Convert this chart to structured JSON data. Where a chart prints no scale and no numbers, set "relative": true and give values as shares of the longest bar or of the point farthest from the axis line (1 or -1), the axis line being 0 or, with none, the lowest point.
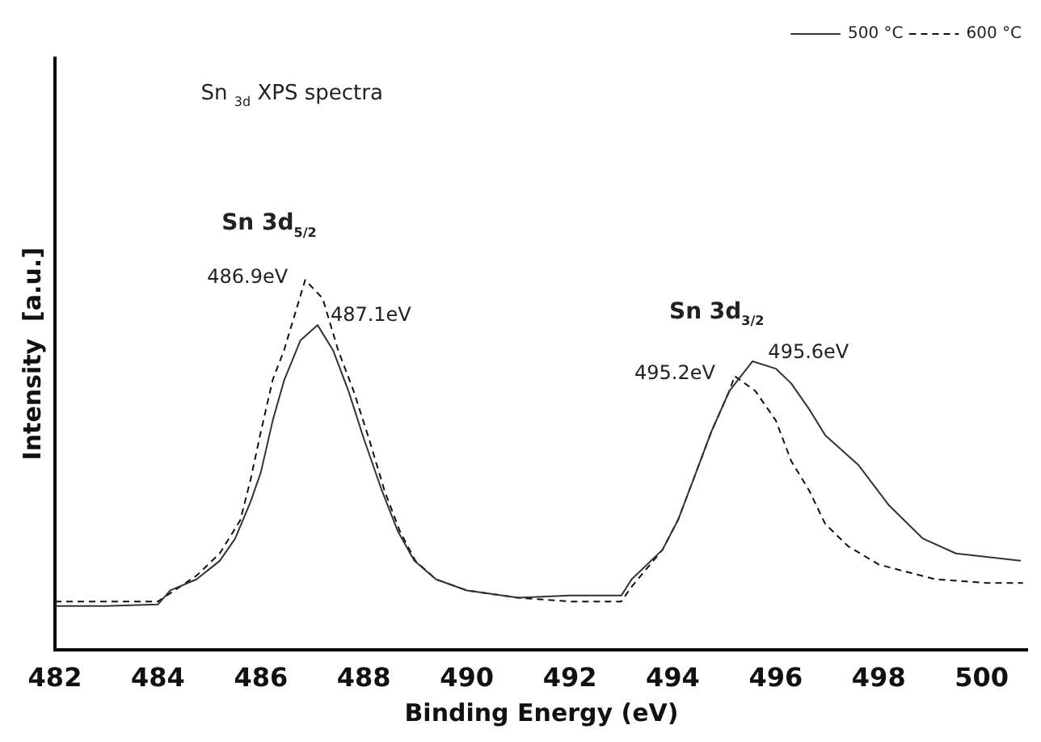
{
  "chart_data": {
    "type": "line",
    "relative": true,
    "xlabel": "Binding Energy (eV)",
    "ylabel": "Intensity  [a.u.]",
    "xlim": [
      482,
      500.9
    ],
    "xticks": [
      482,
      484,
      486,
      488,
      490,
      492,
      494,
      496,
      498,
      500
    ],
    "grid": false,
    "legend": "top right",
    "marker": "none",
    "annotations": [
      "Sn $_{3d}$ XPS spectra",
      "Sn 3d$_{5/2}$",
      {
        "text": "486.9eV",
        "x": 486.9,
        "y": 1.0
      },
      {
        "text": "487.1eV",
        "x": 487.1,
        "y": 0.88
      },
      "Sn 3d$_{3/2}$",
      {
        "text": "495.2eV",
        "x": 495.2,
        "y": 0.74
      },
      {
        "text": "495.6eV",
        "x": 495.6,
        "y": 0.78
      }
    ],
    "series": [
      {
        "name": "500 °C",
        "color": "#333333",
        "line_style": "solid",
        "x": [
          482,
          483,
          484,
          484.24,
          484.75,
          485.2,
          485.5,
          485.8,
          486,
          486.23,
          486.45,
          486.77,
          487.1,
          487.4,
          487.7,
          488,
          488.35,
          488.66,
          488.98,
          489.4,
          490,
          491,
          492,
          493,
          493.2,
          493.8,
          494.1,
          494.4,
          494.75,
          495.1,
          495.55,
          496,
          496.3,
          496.65,
          496.96,
          497.6,
          498.2,
          498.86,
          499.5,
          500.76
        ],
        "values": [
          0.118,
          0.118,
          0.122,
          0.16,
          0.19,
          0.24,
          0.3,
          0.4,
          0.48,
          0.62,
          0.728,
          0.837,
          0.878,
          0.81,
          0.7,
          0.57,
          0.43,
          0.32,
          0.24,
          0.19,
          0.16,
          0.14,
          0.146,
          0.146,
          0.19,
          0.27,
          0.35,
          0.46,
          0.59,
          0.7,
          0.78,
          0.76,
          0.72,
          0.65,
          0.58,
          0.5,
          0.39,
          0.3,
          0.26,
          0.24
        ]
      },
      {
        "name": "600 °C",
        "color": "#111111",
        "line_style": "dashed",
        "x": [
          482,
          483,
          484,
          484.75,
          485.2,
          485.6,
          485.8,
          486,
          486.23,
          486.45,
          486.86,
          487.2,
          487.5,
          487.8,
          488.1,
          488.4,
          488.7,
          489,
          489.4,
          490,
          491,
          492,
          493,
          493.2,
          493.8,
          494.1,
          494.4,
          494.75,
          495.1,
          495.2,
          495.6,
          496,
          496.3,
          496.65,
          496.96,
          497.4,
          498,
          499.1,
          500.1,
          500.8
        ],
        "values": [
          0.13,
          0.13,
          0.13,
          0.2,
          0.26,
          0.35,
          0.46,
          0.59,
          0.73,
          0.81,
          1.0,
          0.95,
          0.81,
          0.7,
          0.57,
          0.43,
          0.32,
          0.24,
          0.19,
          0.16,
          0.14,
          0.13,
          0.13,
          0.17,
          0.27,
          0.35,
          0.46,
          0.59,
          0.7,
          0.74,
          0.7,
          0.62,
          0.51,
          0.43,
          0.34,
          0.28,
          0.23,
          0.19,
          0.18,
          0.18
        ]
      }
    ]
  }
}
